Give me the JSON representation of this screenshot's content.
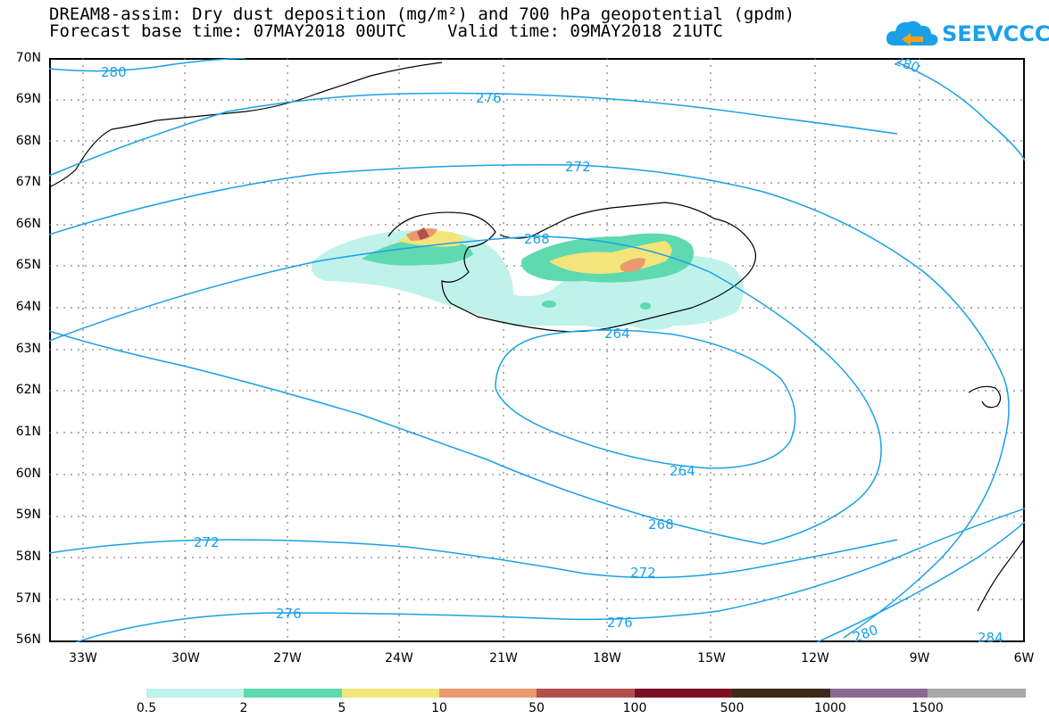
{
  "title": {
    "line1": "DREAM8-assim: Dry dust deposition (mg/m²) and 700 hPa geopotential (gpdm)",
    "line2": "Forecast base time: 07MAY2018 00UTC    Valid time: 09MAY2018 21UTC"
  },
  "logo": {
    "text": "SEEVCCC",
    "icon": "cloud-icon",
    "color": "#1aa0e8"
  },
  "map": {
    "lat_labels": [
      "70N",
      "69N",
      "68N",
      "67N",
      "66N",
      "65N",
      "64N",
      "63N",
      "62N",
      "61N",
      "60N",
      "59N",
      "58N",
      "57N",
      "56N"
    ],
    "lon_labels": [
      "33W",
      "30W",
      "27W",
      "24W",
      "21W",
      "18W",
      "15W",
      "12W",
      "9W",
      "6W"
    ],
    "contour_color": "#1aa0e8",
    "contour_labels": [
      "280",
      "276",
      "272",
      "268",
      "264",
      "264",
      "268",
      "272",
      "272",
      "276",
      "276",
      "280",
      "280",
      "284"
    ]
  },
  "legend": {
    "colors": [
      "#bff2ea",
      "#5ed9b0",
      "#f3e57a",
      "#ea9a6e",
      "#b1504a",
      "#7d0f22",
      "#3a2a17",
      "#8a6a95",
      "#a8a8a8"
    ],
    "labels": [
      "0.5",
      "2",
      "5",
      "10",
      "50",
      "100",
      "500",
      "1000",
      "1500"
    ]
  }
}
